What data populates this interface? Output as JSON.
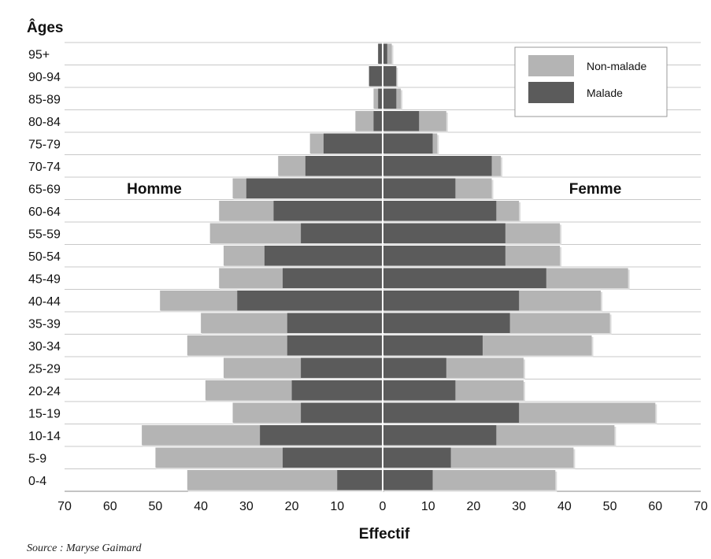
{
  "page": {
    "source": "Source : Maryse Gaimard"
  },
  "chart_data": {
    "type": "bar",
    "orientation": "horizontal-population-pyramid",
    "ylabel": "Âges",
    "xlabel": "Effectif",
    "side_left": "Homme",
    "side_right": "Femme",
    "xlim": [
      -70,
      70
    ],
    "x_ticks": [
      -70,
      -60,
      -50,
      -40,
      -30,
      -20,
      -10,
      0,
      10,
      20,
      30,
      40,
      50,
      60,
      70
    ],
    "x_tick_labels": [
      "70",
      "60",
      "50",
      "40",
      "30",
      "20",
      "10",
      "0",
      "10",
      "20",
      "30",
      "40",
      "50",
      "60",
      "70"
    ],
    "grid": true,
    "legend_position": "top-right",
    "categories": [
      "0-4",
      "5-9",
      "10-14",
      "15-19",
      "20-24",
      "25-29",
      "30-34",
      "35-39",
      "40-44",
      "45-49",
      "50-54",
      "55-59",
      "60-64",
      "65-69",
      "70-74",
      "75-79",
      "80-84",
      "85-89",
      "90-94",
      "95+"
    ],
    "series": [
      {
        "name": "Non-malade",
        "color": "#b4b4b4",
        "homme_total": [
          43,
          50,
          53,
          33,
          39,
          35,
          43,
          40,
          49,
          36,
          35,
          38,
          36,
          33,
          23,
          16,
          6,
          2,
          3,
          1
        ],
        "femme_total": [
          38,
          42,
          51,
          60,
          31,
          31,
          46,
          50,
          48,
          54,
          39,
          39,
          30,
          24,
          26,
          12,
          14,
          4,
          3,
          2
        ]
      },
      {
        "name": "Malade",
        "color": "#5b5b5b",
        "homme": [
          10,
          22,
          27,
          18,
          20,
          18,
          21,
          21,
          32,
          22,
          26,
          18,
          24,
          30,
          17,
          13,
          2,
          1,
          3,
          1
        ],
        "femme": [
          11,
          15,
          25,
          30,
          16,
          14,
          22,
          28,
          30,
          36,
          27,
          27,
          25,
          16,
          24,
          11,
          8,
          3,
          3,
          1
        ]
      }
    ]
  }
}
